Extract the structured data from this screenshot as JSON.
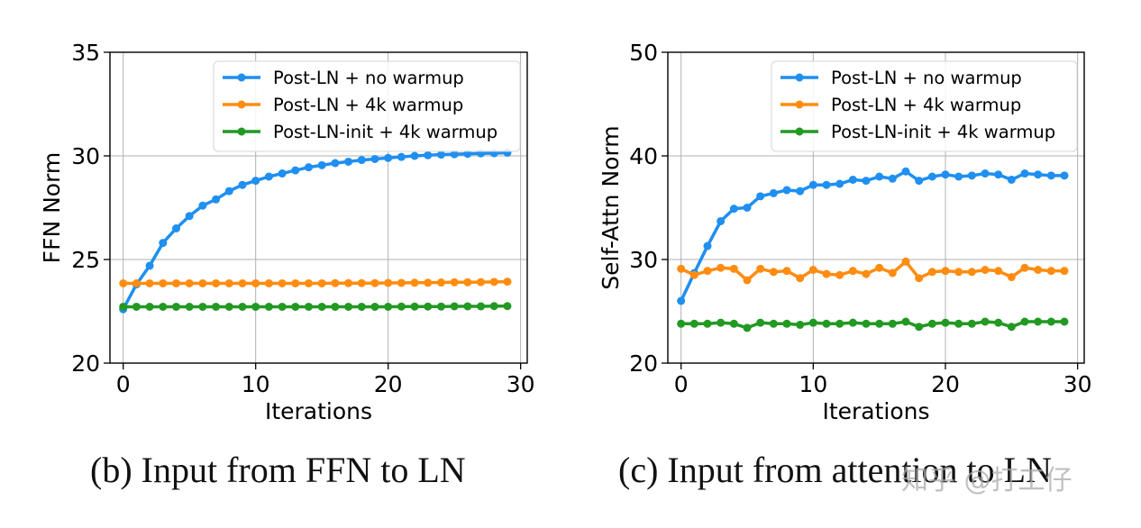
{
  "chart_data": [
    {
      "type": "line",
      "caption": "(b) Input from FFN to LN",
      "xlabel": "Iterations",
      "ylabel": "FFN Norm",
      "xlim": [
        -1,
        30.5
      ],
      "ylim": [
        20,
        35
      ],
      "xticks": [
        "0",
        "10",
        "20",
        "30"
      ],
      "yticks": [
        "20",
        "25",
        "30",
        "35"
      ],
      "grid": true,
      "legend": "top-right",
      "x": [
        0,
        1,
        2,
        3,
        4,
        5,
        6,
        7,
        8,
        9,
        10,
        11,
        12,
        13,
        14,
        15,
        16,
        17,
        18,
        19,
        20,
        21,
        22,
        23,
        24,
        25,
        26,
        27,
        28,
        29
      ],
      "series": [
        {
          "name": "Post-LN + no warmup",
          "color": "#1f8ff0",
          "values": [
            22.6,
            23.8,
            24.7,
            25.8,
            26.5,
            27.1,
            27.6,
            27.9,
            28.3,
            28.6,
            28.8,
            29.0,
            29.15,
            29.3,
            29.45,
            29.55,
            29.65,
            29.72,
            29.8,
            29.85,
            29.9,
            29.95,
            30.0,
            30.03,
            30.06,
            30.08,
            30.1,
            30.12,
            30.13,
            30.15
          ]
        },
        {
          "name": "Post-LN + 4k warmup",
          "color": "#ff8c10",
          "values": [
            23.85,
            23.85,
            23.85,
            23.85,
            23.85,
            23.85,
            23.85,
            23.85,
            23.85,
            23.85,
            23.85,
            23.85,
            23.85,
            23.85,
            23.85,
            23.85,
            23.86,
            23.86,
            23.86,
            23.86,
            23.87,
            23.87,
            23.88,
            23.88,
            23.89,
            23.9,
            23.9,
            23.91,
            23.92,
            23.93
          ]
        },
        {
          "name": "Post-LN-init + 4k warmup",
          "color": "#229922",
          "values": [
            22.72,
            22.72,
            22.72,
            22.72,
            22.72,
            22.72,
            22.72,
            22.72,
            22.72,
            22.72,
            22.72,
            22.72,
            22.72,
            22.72,
            22.72,
            22.72,
            22.72,
            22.72,
            22.72,
            22.72,
            22.72,
            22.73,
            22.73,
            22.73,
            22.73,
            22.74,
            22.74,
            22.74,
            22.75,
            22.75
          ]
        }
      ]
    },
    {
      "type": "line",
      "caption": "(c) Input from attention to LN",
      "xlabel": "Iterations",
      "ylabel": "Self-Attn Norm",
      "xlim": [
        -1,
        30.5
      ],
      "ylim": [
        20,
        50
      ],
      "xticks": [
        "0",
        "10",
        "20",
        "30"
      ],
      "yticks": [
        "20",
        "30",
        "40",
        "50"
      ],
      "grid": true,
      "legend": "top-right",
      "x": [
        0,
        1,
        2,
        3,
        4,
        5,
        6,
        7,
        8,
        9,
        10,
        11,
        12,
        13,
        14,
        15,
        16,
        17,
        18,
        19,
        20,
        21,
        22,
        23,
        24,
        25,
        26,
        27,
        28,
        29
      ],
      "series": [
        {
          "name": "Post-LN + no warmup",
          "color": "#1f8ff0",
          "values": [
            26.0,
            28.7,
            31.3,
            33.7,
            34.9,
            35.0,
            36.1,
            36.4,
            36.7,
            36.6,
            37.2,
            37.2,
            37.3,
            37.7,
            37.6,
            38.0,
            37.8,
            38.5,
            37.6,
            38.0,
            38.2,
            38.0,
            38.1,
            38.3,
            38.2,
            37.7,
            38.3,
            38.2,
            38.1,
            38.1
          ]
        },
        {
          "name": "Post-LN + 4k warmup",
          "color": "#ff8c10",
          "values": [
            29.1,
            28.5,
            28.9,
            29.2,
            29.1,
            28.0,
            29.1,
            28.8,
            28.9,
            28.2,
            29.0,
            28.6,
            28.5,
            28.9,
            28.6,
            29.2,
            28.7,
            29.8,
            28.2,
            28.8,
            28.9,
            28.8,
            28.8,
            29.0,
            28.9,
            28.3,
            29.2,
            29.0,
            28.9,
            28.9
          ]
        },
        {
          "name": "Post-LN-init + 4k warmup",
          "color": "#229922",
          "values": [
            23.8,
            23.8,
            23.8,
            23.9,
            23.8,
            23.4,
            23.9,
            23.8,
            23.8,
            23.7,
            23.9,
            23.8,
            23.8,
            23.9,
            23.8,
            23.8,
            23.8,
            24.0,
            23.5,
            23.8,
            23.9,
            23.8,
            23.8,
            24.0,
            23.9,
            23.5,
            24.0,
            24.0,
            24.0,
            24.0
          ]
        }
      ]
    }
  ],
  "watermark": "知乎 @打工仔"
}
